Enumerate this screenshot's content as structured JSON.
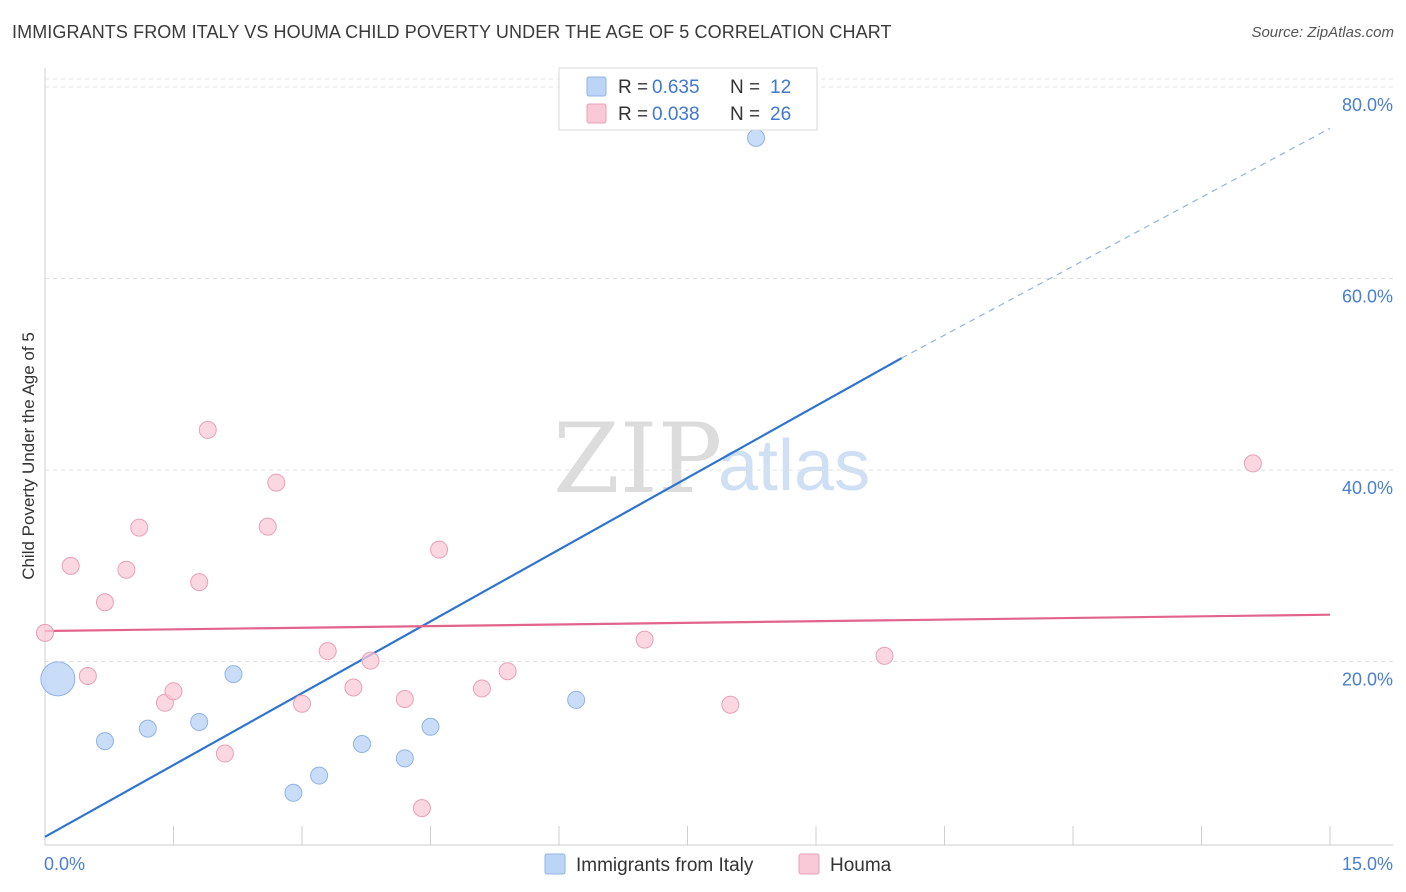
{
  "header": {
    "title": "IMMIGRANTS FROM ITALY VS HOUMA CHILD POVERTY UNDER THE AGE OF 5 CORRELATION CHART",
    "source": "Source: ZipAtlas.com"
  },
  "watermark": {
    "zip": "ZIP",
    "atlas": "atlas"
  },
  "colors": {
    "blue_fill": "#bcd4f6",
    "blue_stroke": "#8fb4e6",
    "blue_line": "#2f74d0",
    "pink_fill": "#f9c9d7",
    "pink_stroke": "#eaa0b8",
    "pink_line": "#e2638c",
    "axis_text": "#4a7fd0",
    "grid": "#e0e0e0"
  },
  "chart_data": {
    "type": "scatter",
    "title": "IMMIGRANTS FROM ITALY VS HOUMA CHILD POVERTY UNDER THE AGE OF 5 CORRELATION CHART",
    "xlabel": "",
    "ylabel": "Child Poverty Under the Age of 5",
    "xlim": [
      0,
      15
    ],
    "ylim": [
      0,
      81
    ],
    "x_tick_labels": [
      {
        "value": 0,
        "label": "0.0%"
      },
      {
        "value": 15,
        "label": "15.0%"
      }
    ],
    "x_minor_ticks": [
      1.5,
      3.0,
      4.5,
      6.0,
      7.5,
      9.0,
      10.5,
      12.0,
      13.5
    ],
    "y_tick_labels": [
      {
        "value": 20,
        "label": "20.0%"
      },
      {
        "value": 40,
        "label": "40.0%"
      },
      {
        "value": 60,
        "label": "60.0%"
      },
      {
        "value": 80,
        "label": "80.0%"
      }
    ],
    "legend": {
      "position": "top-center",
      "entries": [
        {
          "series": "Immigrants from Italy",
          "r_label": "R =",
          "r": "0.635",
          "n_label": "N =",
          "n": "12"
        },
        {
          "series": "Houma",
          "r_label": "R =",
          "r": "0.038",
          "n_label": "N =",
          "n": "26"
        }
      ]
    },
    "series": [
      {
        "name": "Immigrants from Italy",
        "color": "#bcd4f6",
        "points": [
          {
            "x": 0.15,
            "y": 18.5,
            "size": "large"
          },
          {
            "x": 0.7,
            "y": 12.0
          },
          {
            "x": 1.2,
            "y": 13.3
          },
          {
            "x": 1.8,
            "y": 14.0
          },
          {
            "x": 2.2,
            "y": 19.0
          },
          {
            "x": 2.9,
            "y": 6.6
          },
          {
            "x": 3.2,
            "y": 8.4
          },
          {
            "x": 3.7,
            "y": 11.7
          },
          {
            "x": 4.2,
            "y": 10.2
          },
          {
            "x": 4.5,
            "y": 13.5
          },
          {
            "x": 6.2,
            "y": 16.3
          },
          {
            "x": 8.3,
            "y": 75.0
          }
        ],
        "trend": {
          "x0": 0,
          "y0": 2.0,
          "x1": 10.0,
          "y1": 52.0,
          "dashed_to": {
            "x": 15,
            "y": 76.0
          }
        }
      },
      {
        "name": "Houma",
        "color": "#f9c9d7",
        "points": [
          {
            "x": 0.0,
            "y": 23.3
          },
          {
            "x": 0.3,
            "y": 30.3
          },
          {
            "x": 0.5,
            "y": 18.8
          },
          {
            "x": 0.7,
            "y": 26.5
          },
          {
            "x": 0.95,
            "y": 29.9
          },
          {
            "x": 1.1,
            "y": 34.3
          },
          {
            "x": 1.4,
            "y": 16.0
          },
          {
            "x": 1.5,
            "y": 17.2
          },
          {
            "x": 1.8,
            "y": 28.6
          },
          {
            "x": 1.9,
            "y": 44.5
          },
          {
            "x": 2.1,
            "y": 10.7
          },
          {
            "x": 2.6,
            "y": 34.4
          },
          {
            "x": 2.7,
            "y": 39.0
          },
          {
            "x": 3.0,
            "y": 15.9
          },
          {
            "x": 3.3,
            "y": 21.4
          },
          {
            "x": 3.6,
            "y": 17.6
          },
          {
            "x": 3.8,
            "y": 20.4
          },
          {
            "x": 4.2,
            "y": 16.4
          },
          {
            "x": 4.4,
            "y": 5.0
          },
          {
            "x": 4.6,
            "y": 32.0
          },
          {
            "x": 5.1,
            "y": 17.5
          },
          {
            "x": 5.4,
            "y": 19.3
          },
          {
            "x": 7.0,
            "y": 22.6
          },
          {
            "x": 8.0,
            "y": 15.8
          },
          {
            "x": 9.8,
            "y": 20.9
          },
          {
            "x": 14.1,
            "y": 41.0
          }
        ],
        "trend": {
          "x0": 0,
          "y0": 23.5,
          "x1": 15,
          "y1": 25.2
        }
      }
    ]
  },
  "bottom_legend": {
    "items": [
      {
        "label": "Immigrants from Italy"
      },
      {
        "label": "Houma"
      }
    ]
  }
}
